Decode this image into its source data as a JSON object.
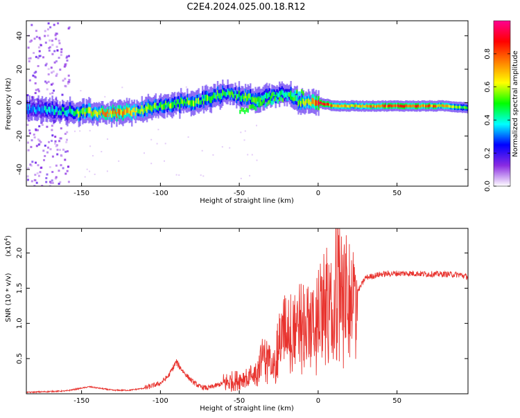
{
  "title": "C2E4.2024.025.00.18.R12",
  "chart_data": [
    {
      "type": "heatmap",
      "xlabel": "Height of straight line (km)",
      "ylabel": "Frequency (Hz)",
      "xlim": [
        -185,
        95
      ],
      "ylim": [
        -50,
        49
      ],
      "x_ticks": [
        -150,
        -100,
        -50,
        0,
        50
      ],
      "y_ticks": [
        -40,
        -20,
        0,
        20,
        40
      ],
      "colorbar": {
        "label": "Normalized spectral amplitude",
        "range": [
          0,
          1
        ],
        "ticks": [
          "0.0",
          "0.2",
          "0.4",
          "0.6",
          "0.8"
        ],
        "colors": [
          "#ffffff",
          "#8a2be2",
          "#0000ff",
          "#00ffff",
          "#00ff00",
          "#ffff00",
          "#ff8000",
          "#ff0000",
          "#ff0090"
        ]
      },
      "ridge": [
        {
          "x": -185,
          "y": -4,
          "amp": 0.35
        },
        {
          "x": -160,
          "y": -5,
          "amp": 0.45
        },
        {
          "x": -150,
          "y": -6,
          "amp": 0.6
        },
        {
          "x": -140,
          "y": -6,
          "amp": 0.7
        },
        {
          "x": -125,
          "y": -6,
          "amp": 0.8
        },
        {
          "x": -115,
          "y": -5,
          "amp": 0.6
        },
        {
          "x": -100,
          "y": -2,
          "amp": 0.55
        },
        {
          "x": -85,
          "y": 0,
          "amp": 0.6
        },
        {
          "x": -70,
          "y": 2,
          "amp": 0.55
        },
        {
          "x": -60,
          "y": 6,
          "amp": 0.5
        },
        {
          "x": -50,
          "y": 4,
          "amp": 0.55
        },
        {
          "x": -40,
          "y": 2,
          "amp": 0.55
        },
        {
          "x": -30,
          "y": 4,
          "amp": 0.5
        },
        {
          "x": -20,
          "y": 6,
          "amp": 0.45
        },
        {
          "x": -12,
          "y": 0,
          "amp": 0.55
        },
        {
          "x": 0,
          "y": 0,
          "amp": 0.9
        },
        {
          "x": 10,
          "y": -2,
          "amp": 0.8
        },
        {
          "x": 25,
          "y": -2,
          "amp": 0.7
        },
        {
          "x": 40,
          "y": -2,
          "amp": 0.8
        },
        {
          "x": 60,
          "y": -2,
          "amp": 0.95
        },
        {
          "x": 80,
          "y": -2,
          "amp": 0.7
        },
        {
          "x": 95,
          "y": -3,
          "amp": 0.5
        }
      ]
    },
    {
      "type": "line",
      "xlabel": "Height of straight line (km)",
      "ylabel": "SNR (10 * v/v)",
      "multiplier": "(x10",
      "multiplier_exp": "4",
      "xlim": [
        -185,
        95
      ],
      "ylim": [
        0,
        2.35
      ],
      "x_ticks": [
        -150,
        -100,
        -50,
        0,
        50
      ],
      "y_ticks": [
        "0.5",
        "1.0",
        "1.5",
        "2.0"
      ],
      "color": "#e8332e",
      "series": [
        {
          "values_x": [
            -185,
            -160,
            -145,
            -130,
            -120,
            -110,
            -100,
            -95,
            -90,
            -85,
            -80,
            -75,
            -70,
            -60,
            -50,
            -40,
            -35,
            -30,
            -25,
            -20,
            -15,
            -10,
            -5,
            0,
            5,
            8,
            10,
            11,
            13,
            18,
            25,
            30,
            40,
            50,
            60,
            70,
            80,
            90,
            95
          ],
          "values_y": [
            0.02,
            0.04,
            0.1,
            0.05,
            0.05,
            0.08,
            0.15,
            0.25,
            0.45,
            0.3,
            0.18,
            0.1,
            0.08,
            0.15,
            0.2,
            0.3,
            0.55,
            0.5,
            0.8,
            1.0,
            0.95,
            1.15,
            1.0,
            1.2,
            1.4,
            1.3,
            0.9,
            2.3,
            1.7,
            1.5,
            1.45,
            1.65,
            1.7,
            1.71,
            1.71,
            1.7,
            1.7,
            1.69,
            1.66
          ]
        }
      ]
    }
  ]
}
